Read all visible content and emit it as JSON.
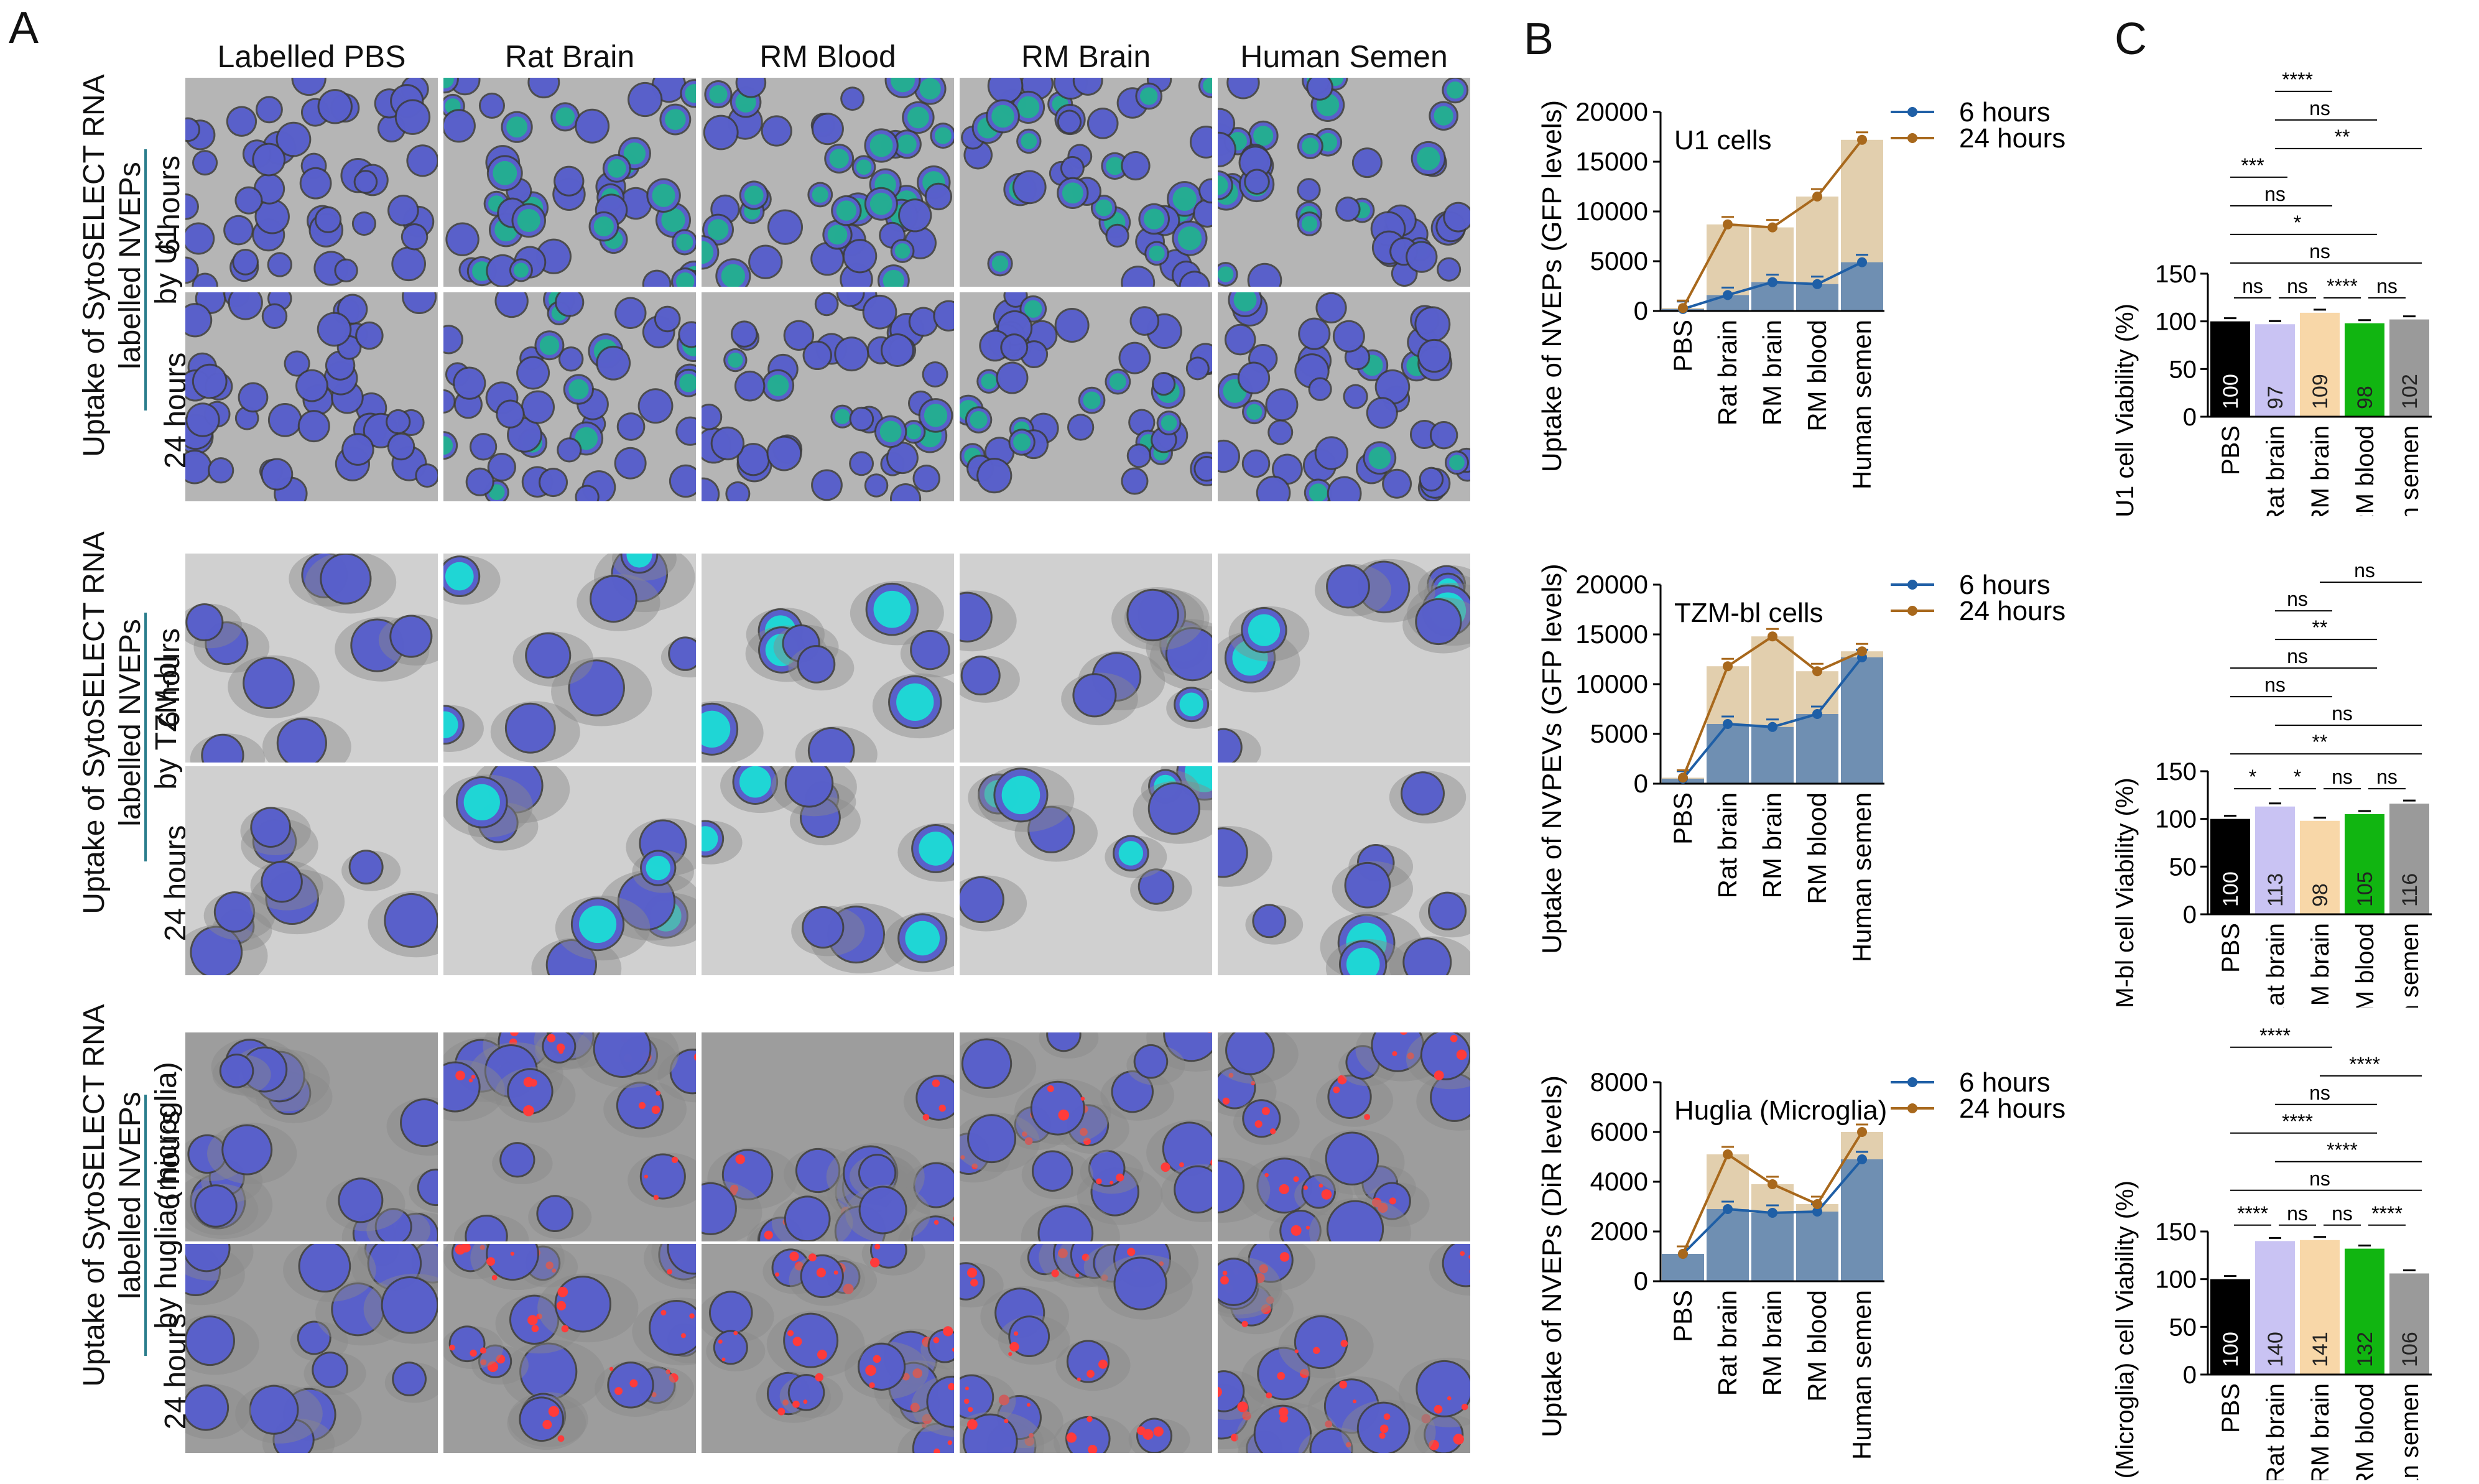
{
  "panel_letters": {
    "a": "A",
    "b": "B",
    "c": "C"
  },
  "columns": [
    "Labelled PBS",
    "Rat Brain",
    "RM Blood",
    "RM Brain",
    "Human Semen"
  ],
  "rows": [
    {
      "label_lines": [
        "Uptake of SytoSELECT RNA",
        "labelled NVEPs",
        "by U1"
      ],
      "times": [
        "6 hours",
        "24 hours"
      ],
      "theme": "u1"
    },
    {
      "label_lines": [
        "Uptake of SytoSELECT RNA",
        "labelled NVEPs",
        "by TZM-bl"
      ],
      "times": [
        "6 hours",
        "24 hours"
      ],
      "theme": "tzm"
    },
    {
      "label_lines": [
        "Uptake of SytoSELECT RNA",
        "labelled NVEPs",
        "by huglia (microglia)"
      ],
      "times": [
        "6 hours",
        "24 hours"
      ],
      "theme": "huglia"
    }
  ],
  "colors": {
    "six": "#1f5fa6",
    "twentyfour": "#a8681c",
    "bar6": "#6f8fb2",
    "bar24": "#e2cfae"
  },
  "chart_data": [
    {
      "type": "bar+line",
      "title": "U1 cells",
      "ylabel": "Uptake of NVEPs (GFP levels)",
      "categories": [
        "PBS",
        "Rat brain",
        "RM brain",
        "RM blood",
        "Human semen"
      ],
      "ylim": [
        0,
        20000
      ],
      "yticks": [
        0,
        5000,
        10000,
        15000,
        20000
      ],
      "series": [
        {
          "name": "6 hours",
          "values": [
            200,
            1600,
            2900,
            2700,
            4900
          ]
        },
        {
          "name": "24 hours",
          "values": [
            300,
            8700,
            8400,
            11500,
            17200
          ]
        }
      ]
    },
    {
      "type": "bar+line",
      "title": "TZM-bl cells",
      "ylabel": "Uptake of NVPEVs (GFP levels)",
      "categories": [
        "PBS",
        "Rat brain",
        "RM brain",
        "RM blood",
        "Human semen"
      ],
      "ylim": [
        0,
        20000
      ],
      "yticks": [
        0,
        5000,
        10000,
        15000,
        20000
      ],
      "series": [
        {
          "name": "6 hours",
          "values": [
            500,
            6000,
            5700,
            7000,
            12700
          ]
        },
        {
          "name": "24 hours",
          "values": [
            600,
            11800,
            14800,
            11300,
            13300
          ]
        }
      ]
    },
    {
      "type": "bar+line",
      "title": "Huglia (Microglia)",
      "ylabel": "Uptake of NVEPs (DiR levels)",
      "categories": [
        "PBS",
        "Rat brain",
        "RM brain",
        "RM blood",
        "Human semen"
      ],
      "ylim": [
        0,
        8000
      ],
      "yticks": [
        0,
        2000,
        4000,
        6000,
        8000
      ],
      "series": [
        {
          "name": "6 hours",
          "values": [
            1100,
            2900,
            2750,
            2800,
            4900
          ]
        },
        {
          "name": "24 hours",
          "values": [
            1100,
            5100,
            3900,
            3100,
            6000
          ]
        }
      ]
    },
    {
      "type": "bar",
      "ylabel": "U1 cell Viability (%)",
      "categories": [
        "PBS",
        "Rat brain",
        "RM brain",
        "RM blood",
        "Human semen"
      ],
      "values": [
        100,
        97,
        109,
        98,
        102
      ],
      "value_labels": [
        "100",
        "97",
        "109",
        "98",
        "102"
      ],
      "ylim": [
        0,
        150
      ],
      "yticks": [
        0,
        50,
        100,
        150
      ],
      "bar_colors": [
        "#000000",
        "#c9c3f3",
        "#f8d7a8",
        "#11b511",
        "#9a9a9a"
      ],
      "sig_near": [
        "ns",
        "ns",
        "****",
        "ns"
      ],
      "sig_brackets": [
        {
          "from": 0,
          "to": 4,
          "label": "ns"
        },
        {
          "from": 0,
          "to": 3,
          "label": "*"
        },
        {
          "from": 0,
          "to": 2,
          "label": "ns"
        },
        {
          "from": 0,
          "to": 1,
          "label": "***"
        },
        {
          "from": 1,
          "to": 4,
          "label": "**"
        },
        {
          "from": 1,
          "to": 3,
          "label": "ns"
        },
        {
          "from": 1,
          "to": 2,
          "label": "****"
        }
      ]
    },
    {
      "type": "bar",
      "ylabel": "TZM-bl cell Viability (%)",
      "categories": [
        "PBS",
        "Rat brain",
        "RM brain",
        "RM blood",
        "Human semen"
      ],
      "values": [
        100,
        113,
        98,
        105,
        116
      ],
      "value_labels": [
        "100",
        "113",
        "98",
        "105",
        "116"
      ],
      "ylim": [
        0,
        150
      ],
      "yticks": [
        0,
        50,
        100,
        150
      ],
      "bar_colors": [
        "#000000",
        "#c9c3f3",
        "#f8d7a8",
        "#11b511",
        "#9a9a9a"
      ],
      "sig_near": [
        "*",
        "*",
        "ns",
        "ns"
      ],
      "sig_brackets": [
        {
          "from": 0,
          "to": 4,
          "label": "**"
        },
        {
          "from": 1,
          "to": 4,
          "label": "ns"
        },
        {
          "from": 0,
          "to": 2,
          "label": "ns"
        },
        {
          "from": 0,
          "to": 3,
          "label": "ns"
        },
        {
          "from": 1,
          "to": 3,
          "label": "**"
        },
        {
          "from": 1,
          "to": 2,
          "label": "ns"
        },
        {
          "from": 2,
          "to": 4,
          "label": "ns"
        }
      ]
    },
    {
      "type": "bar",
      "ylabel": "Huglia (Microglia) cell Viability (%)",
      "categories": [
        "PBS",
        "Rat brain",
        "RM brain",
        "RM blood",
        "Human semen"
      ],
      "values": [
        100,
        140,
        141,
        132,
        106
      ],
      "value_labels": [
        "100",
        "140",
        "141",
        "132",
        "106"
      ],
      "ylim": [
        0,
        150
      ],
      "yticks": [
        0,
        50,
        100,
        150
      ],
      "bar_colors": [
        "#000000",
        "#c9c3f3",
        "#f8d7a8",
        "#11b511",
        "#9a9a9a"
      ],
      "sig_near": [
        "****",
        "ns",
        "ns",
        "****"
      ],
      "sig_brackets": [
        {
          "from": 0,
          "to": 4,
          "label": "ns"
        },
        {
          "from": 1,
          "to": 4,
          "label": "****"
        },
        {
          "from": 0,
          "to": 3,
          "label": "****"
        },
        {
          "from": 1,
          "to": 3,
          "label": "ns"
        },
        {
          "from": 2,
          "to": 4,
          "label": "****"
        },
        {
          "from": 0,
          "to": 2,
          "label": "****"
        }
      ]
    }
  ]
}
